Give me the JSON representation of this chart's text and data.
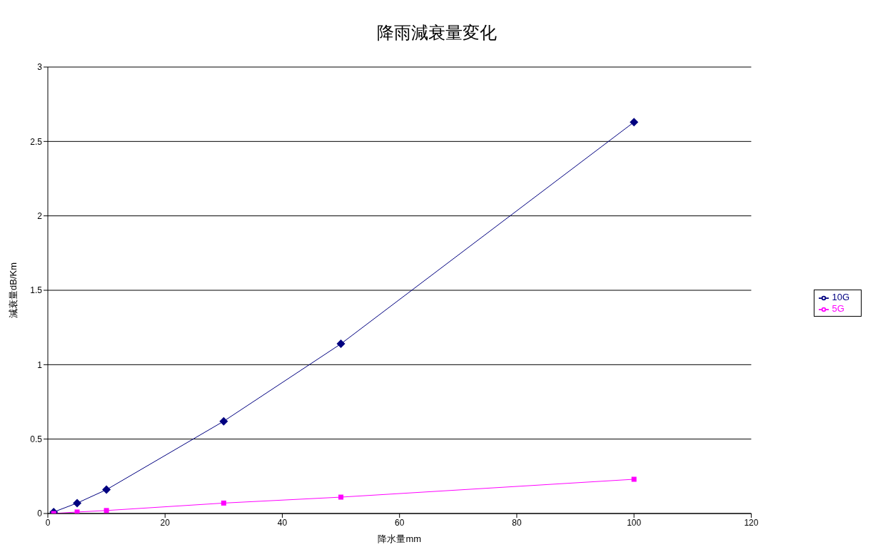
{
  "chart_data": {
    "type": "line",
    "title": "降雨減衰量変化",
    "xlabel": "降水量mm",
    "ylabel": "減衰量dB/Km",
    "xlim": [
      0,
      120
    ],
    "xticks": [
      0,
      20,
      40,
      60,
      80,
      100,
      120
    ],
    "ylim": [
      0,
      3
    ],
    "yticks": [
      0,
      0.5,
      1,
      1.5,
      2,
      2.5,
      3
    ],
    "grid": "y",
    "legend": "right",
    "series": [
      {
        "name": "10G",
        "color": "#000080",
        "marker": "diamond",
        "x": [
          1,
          5,
          10,
          30,
          50,
          100
        ],
        "values": [
          0.01,
          0.07,
          0.16,
          0.62,
          1.14,
          2.63
        ]
      },
      {
        "name": "5G",
        "color": "#ff00ff",
        "marker": "square",
        "x": [
          1,
          5,
          10,
          30,
          50,
          100
        ],
        "values": [
          0.0,
          0.01,
          0.02,
          0.07,
          0.11,
          0.23
        ]
      }
    ]
  }
}
